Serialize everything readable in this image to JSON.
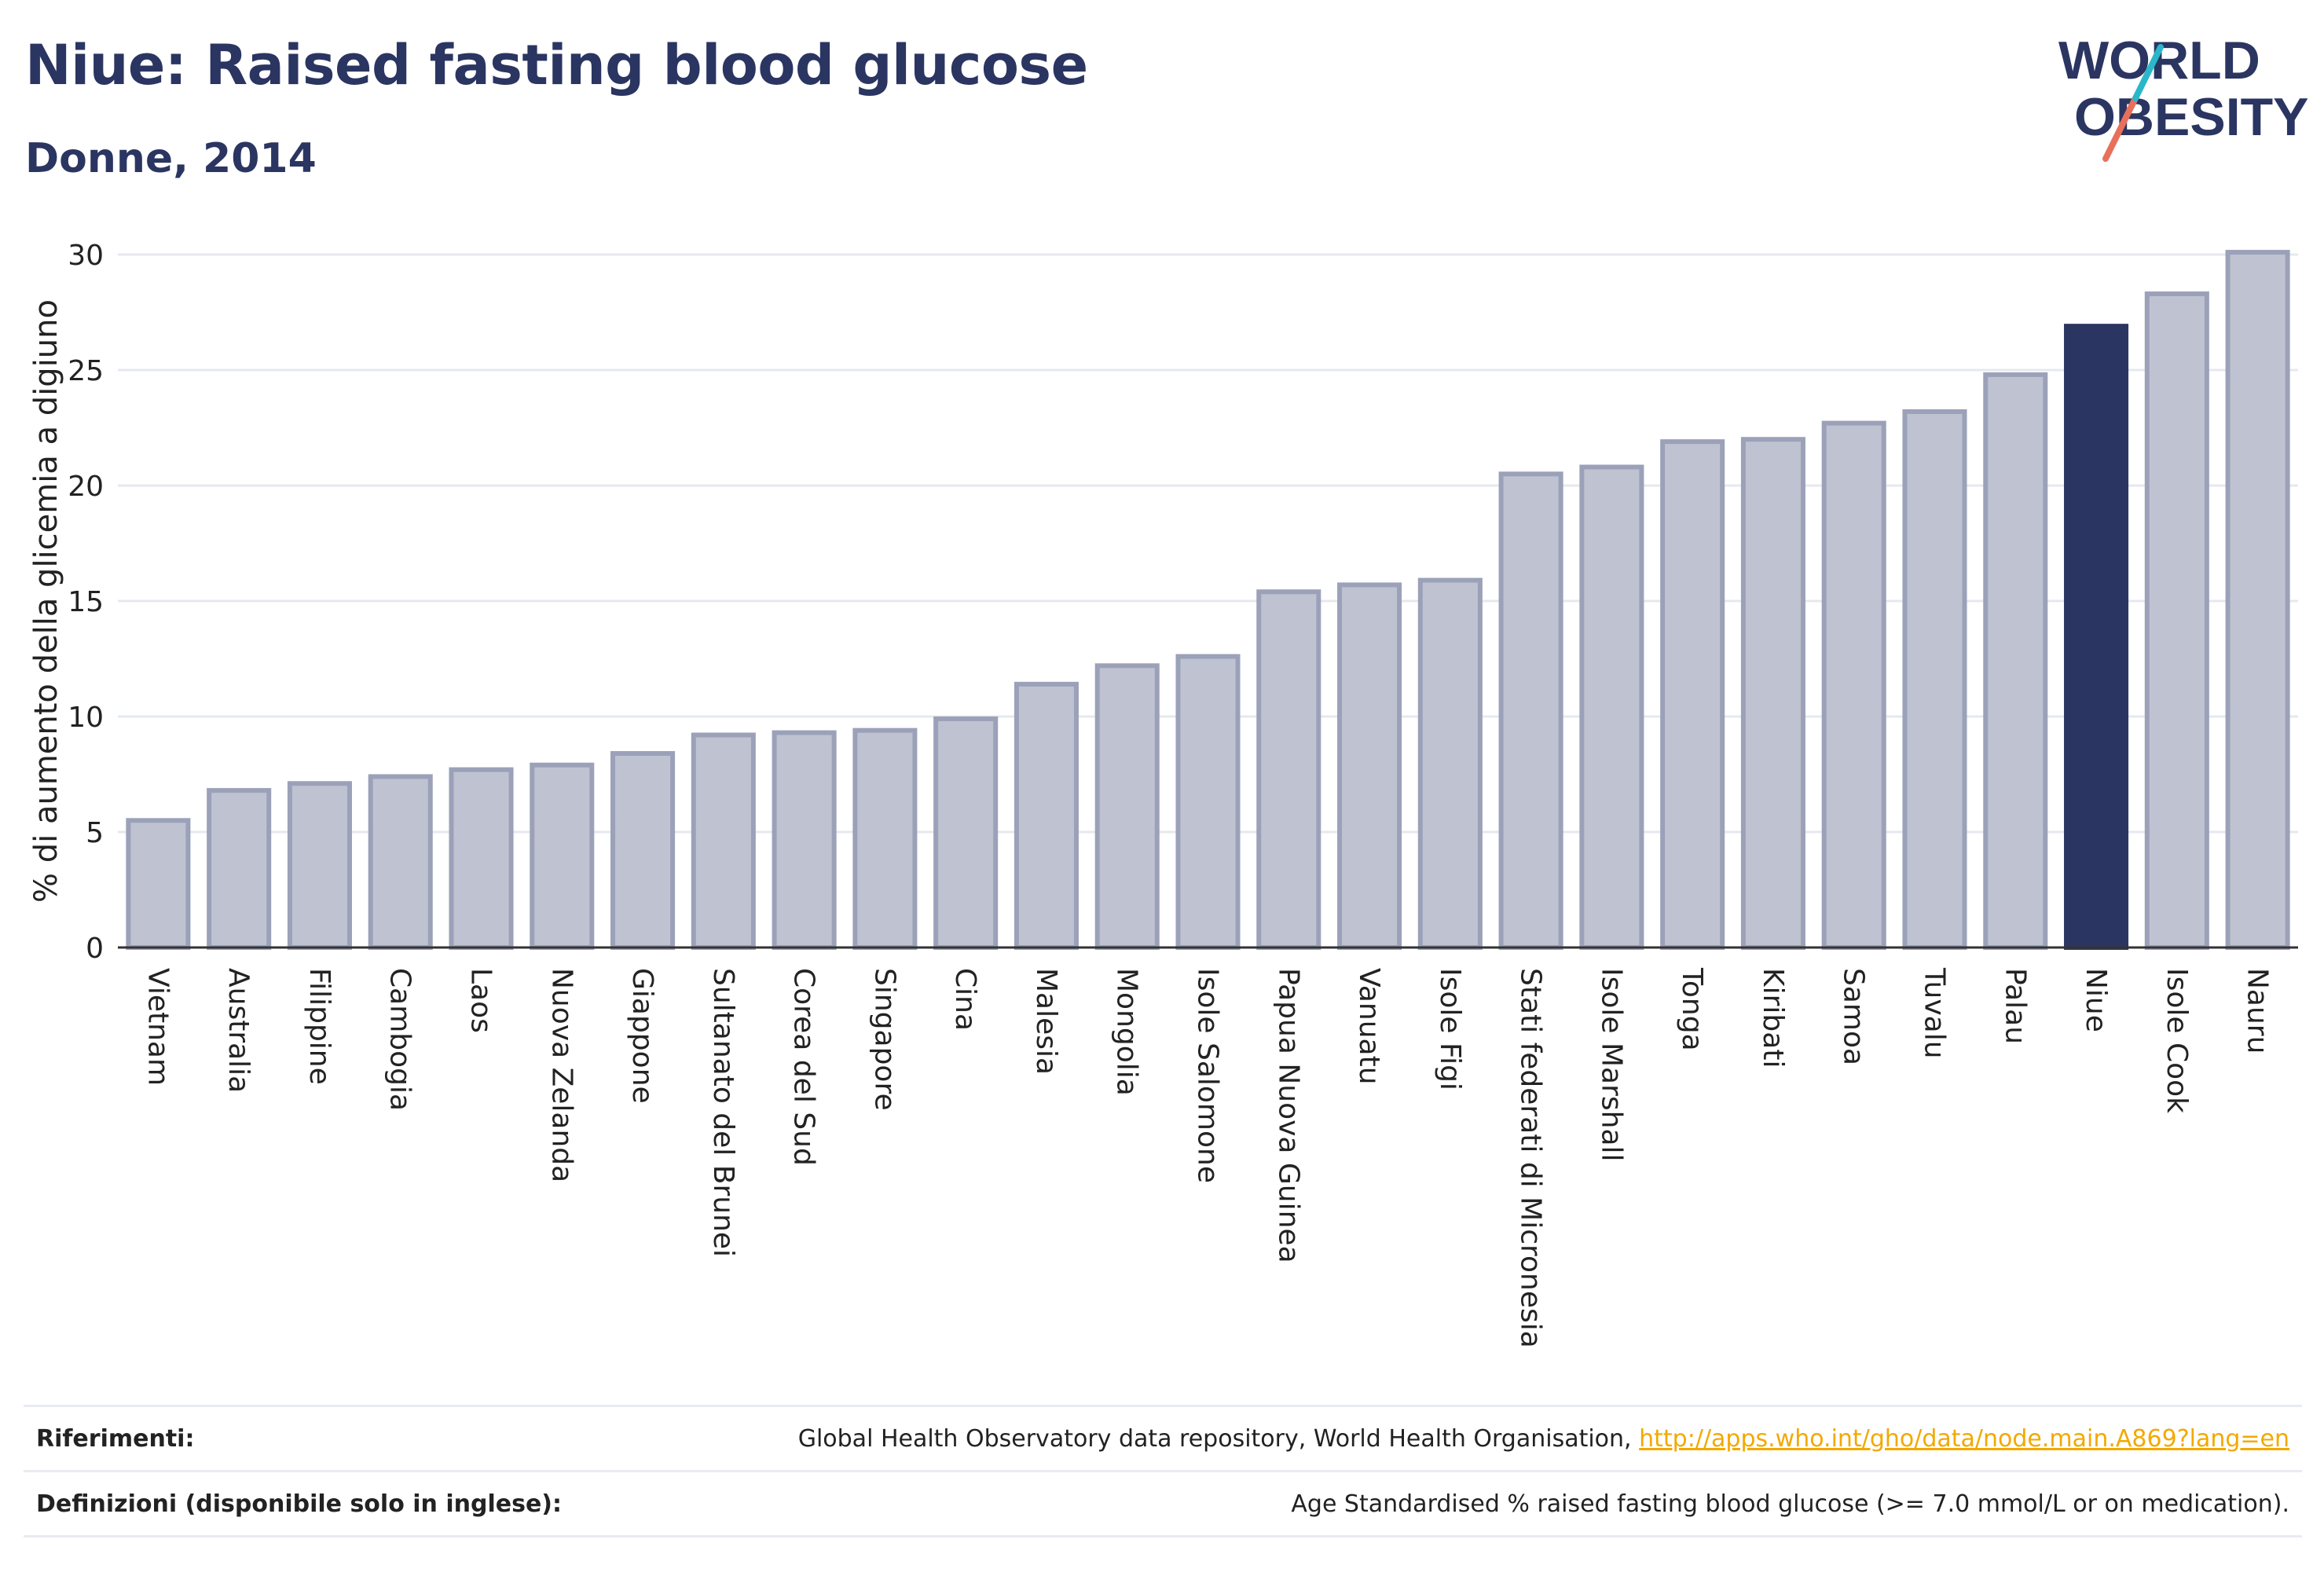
{
  "header": {
    "title": "Niue: Raised fasting blood glucose",
    "subtitle": "Donne, 2014",
    "logo_line1": "WORLD",
    "logo_line2": "OBESITY"
  },
  "colors": {
    "title": "#2b3561",
    "bar_default": "#bfc3d1",
    "bar_default_stroke": "#9ba1b8",
    "bar_highlight": "#2b3561",
    "grid": "#e6e8ef",
    "logo_teal": "#2ab7ca",
    "logo_coral": "#e8705a"
  },
  "chart_data": {
    "type": "bar",
    "ylabel": "% di aumento della glicemia a digiuno",
    "ylim": [
      0,
      30
    ],
    "yticks": [
      0,
      5,
      10,
      15,
      20,
      25,
      30
    ],
    "grid": true,
    "highlight": "Niue",
    "categories": [
      "Vietnam",
      "Australia",
      "Filippine",
      "Cambogia",
      "Laos",
      "Nuova Zelanda",
      "Giappone",
      "Sultanato del Brunei",
      "Corea del Sud",
      "Singapore",
      "Cina",
      "Malesia",
      "Mongolia",
      "Isole Salomone",
      "Papua Nuova Guinea",
      "Vanuatu",
      "Isole Figi",
      "Stati federati di Micronesia",
      "Isole Marshall",
      "Tonga",
      "Kiribati",
      "Samoa",
      "Tuvalu",
      "Palau",
      "Niue",
      "Isole Cook",
      "Nauru"
    ],
    "values": [
      5.5,
      6.8,
      7.1,
      7.4,
      7.7,
      7.9,
      8.4,
      9.2,
      9.3,
      9.4,
      9.9,
      11.4,
      12.2,
      12.6,
      15.4,
      15.7,
      15.9,
      20.5,
      20.8,
      21.9,
      22.0,
      22.7,
      23.2,
      24.8,
      26.9,
      28.3,
      30.1
    ]
  },
  "footer": {
    "references_label": "Riferimenti:",
    "references_text": "Global Health Observatory data repository, World Health Organisation,",
    "references_link": "http://apps.who.int/gho/data/node.main.A869?lang=en",
    "definitions_label": "Definizioni (disponibile solo in inglese):",
    "definitions_text": "Age Standardised % raised fasting blood glucose (>= 7.0 mmol/L or on medication)."
  }
}
